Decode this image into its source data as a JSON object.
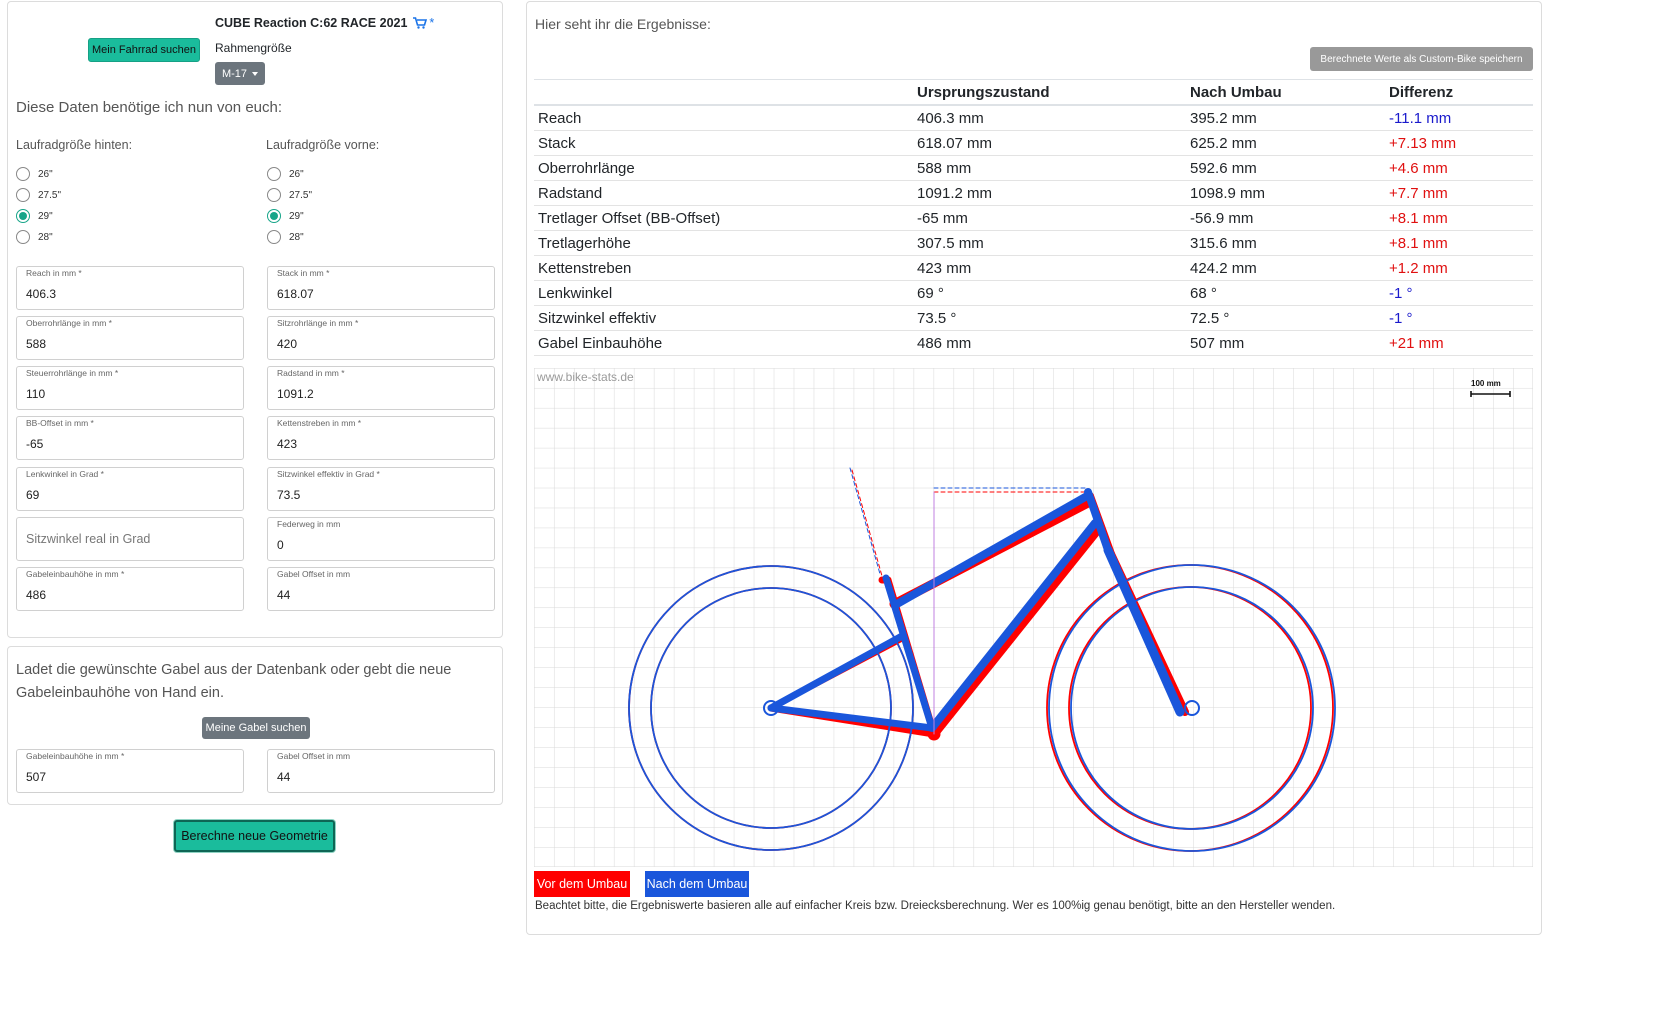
{
  "bike": {
    "title": "CUBE Reaction C:62 RACE 2021",
    "find_bike_button": "Mein Fahrrad suchen",
    "frame_size_label": "Rahmengröße",
    "frame_size_value": "M-17"
  },
  "left": {
    "intro": "Diese Daten benötige ich nun von euch:",
    "rear_wheel_label": "Laufradgröße hinten:",
    "front_wheel_label": "Laufradgröße vorne:",
    "wheel_options": [
      "26\"",
      "27.5\"",
      "29\"",
      "28\""
    ],
    "rear_selected": "29\"",
    "front_selected": "29\"",
    "fields": {
      "reach": {
        "label": "Reach in mm *",
        "value": "406.3"
      },
      "stack": {
        "label": "Stack in mm *",
        "value": "618.07"
      },
      "top_tube": {
        "label": "Oberrohrlänge in mm *",
        "value": "588"
      },
      "seat_tube": {
        "label": "Sitzrohrlänge in mm *",
        "value": "420"
      },
      "head_tube": {
        "label": "Steuerrohrlänge in mm *",
        "value": "110"
      },
      "wheelbase": {
        "label": "Radstand in mm *",
        "value": "1091.2"
      },
      "bb_offset": {
        "label": "BB-Offset in mm *",
        "value": "-65"
      },
      "chainstays": {
        "label": "Kettenstreben in mm *",
        "value": "423"
      },
      "head_angle": {
        "label": "Lenkwinkel in Grad *",
        "value": "69"
      },
      "seat_angle_eff": {
        "label": "Sitzwinkel effektiv in Grad *",
        "value": "73.5"
      },
      "seat_angle_real": {
        "placeholder": "Sitzwinkel real in Grad"
      },
      "travel": {
        "label": "Federweg in mm",
        "value": "0"
      },
      "fork_height": {
        "label": "Gabeleinbauhöhe in mm *",
        "value": "486"
      },
      "fork_offset": {
        "label": "Gabel Offset in mm",
        "value": "44"
      }
    }
  },
  "fork": {
    "intro": "Ladet die gewünschte Gabel aus der Datenbank oder gebt die neue Gabeleinbauhöhe von Hand ein.",
    "find_fork_button": "Meine Gabel suchen",
    "height": {
      "label": "Gabeleinbauhöhe in mm *",
      "value": "507"
    },
    "offset": {
      "label": "Gabel Offset in mm",
      "value": "44"
    }
  },
  "calc_button": "Berechne neue Geometrie",
  "results": {
    "intro": "Hier seht ihr die Ergebnisse:",
    "save_button": "Berechnete Werte als Custom-Bike speichern",
    "headers": [
      "",
      "Ursprungszustand",
      "Nach Umbau",
      "Differenz"
    ],
    "rows": [
      [
        "Reach",
        "406.3 mm",
        "395.2 mm",
        "-11.1 mm"
      ],
      [
        "Stack",
        "618.07 mm",
        "625.2 mm",
        "+7.13 mm"
      ],
      [
        "Oberrohrlänge",
        "588 mm",
        "592.6 mm",
        "+4.6 mm"
      ],
      [
        "Radstand",
        "1091.2 mm",
        "1098.9 mm",
        "+7.7 mm"
      ],
      [
        "Tretlager Offset (BB-Offset)",
        "-65 mm",
        "-56.9 mm",
        "+8.1 mm"
      ],
      [
        "Tretlagerhöhe",
        "307.5 mm",
        "315.6 mm",
        "+8.1 mm"
      ],
      [
        "Kettenstreben",
        "423 mm",
        "424.2 mm",
        "+1.2 mm"
      ],
      [
        "Lenkwinkel",
        "69 °",
        "68 °",
        "-1 °"
      ],
      [
        "Sitzwinkel effektiv",
        "73.5 °",
        "72.5 °",
        "-1 °"
      ],
      [
        "Gabel Einbauhöhe",
        "486 mm",
        "507 mm",
        "+21 mm"
      ]
    ]
  },
  "drawing": {
    "watermark": "www.bike-stats.de",
    "scale_label": "100 mm",
    "color_before": "#ff0000",
    "color_after": "#1a56db"
  },
  "legend": {
    "before": "Vor dem Umbau",
    "after": "Nach dem Umbau",
    "note": "Beachtet bitte, die Ergebniswerte basieren alle auf einfacher Kreis bzw. Dreiecksberechnung. Wer es 100%ig genau benötigt, bitte an den Hersteller wenden."
  }
}
